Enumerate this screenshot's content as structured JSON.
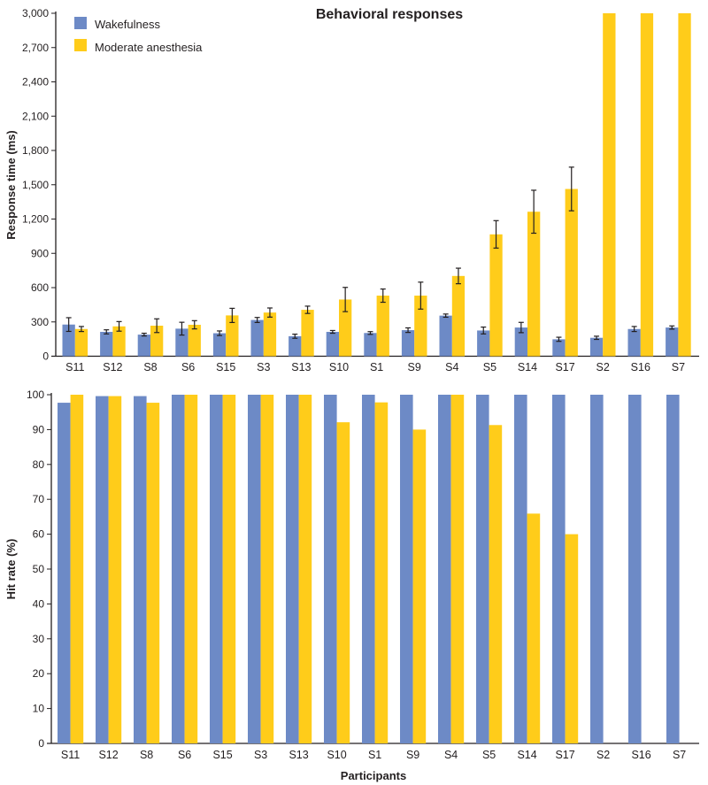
{
  "chart_data": [
    {
      "type": "bar",
      "title": "Behavioral responses",
      "xlabel": "",
      "ylabel": "Response time (ms)",
      "ylim": [
        0,
        3000
      ],
      "yticks": [
        0,
        300,
        600,
        900,
        1200,
        1500,
        1800,
        2100,
        2400,
        2700,
        3000
      ],
      "ytick_labels": [
        "0",
        "300",
        "600",
        "900",
        "1,200",
        "1,500",
        "1,800",
        "2,100",
        "2,400",
        "2,700",
        "3,000"
      ],
      "grid": false,
      "legend": {
        "placement": "top-left",
        "entries": [
          "Wakefulness",
          "Moderate anesthesia"
        ]
      },
      "categories": [
        "S11",
        "S12",
        "S8",
        "S6",
        "S15",
        "S3",
        "S13",
        "S10",
        "S1",
        "S9",
        "S4",
        "S5",
        "S14",
        "S17",
        "S2",
        "S16",
        "S7"
      ],
      "series": [
        {
          "name": "Wakefulness",
          "color": "#6d8ac6",
          "values": [
            277,
            213,
            189,
            241,
            201,
            317,
            175,
            213,
            203,
            228,
            355,
            225,
            251,
            148,
            161,
            238,
            251
          ],
          "errors": [
            60,
            18,
            12,
            56,
            20,
            22,
            18,
            12,
            12,
            20,
            14,
            30,
            45,
            18,
            14,
            22,
            14
          ]
        },
        {
          "name": "Moderate anesthesia",
          "color": "#ffcc1a",
          "values": [
            238,
            261,
            267,
            275,
            357,
            382,
            406,
            496,
            530,
            530,
            702,
            1066,
            1264,
            1463,
            3000,
            3000,
            3000
          ],
          "errors": [
            22,
            42,
            60,
            36,
            62,
            40,
            32,
            106,
            58,
            118,
            68,
            120,
            188,
            191,
            null,
            null,
            null
          ]
        }
      ]
    },
    {
      "type": "bar",
      "title": "",
      "xlabel": "Participants",
      "ylabel": "Hit rate (%)",
      "ylim": [
        0,
        100
      ],
      "yticks": [
        0,
        10,
        20,
        30,
        40,
        50,
        60,
        70,
        80,
        90,
        100
      ],
      "ytick_labels": [
        "0",
        "10",
        "20",
        "30",
        "40",
        "50",
        "60",
        "70",
        "80",
        "90",
        "100"
      ],
      "grid": false,
      "categories": [
        "S11",
        "S12",
        "S8",
        "S6",
        "S15",
        "S3",
        "S13",
        "S10",
        "S1",
        "S9",
        "S4",
        "S5",
        "S14",
        "S17",
        "S2",
        "S16",
        "S7"
      ],
      "series": [
        {
          "name": "Wakefulness",
          "color": "#6d8ac6",
          "values": [
            97.7,
            99.6,
            99.6,
            100,
            100,
            100,
            100,
            100,
            100,
            100,
            100,
            100,
            100,
            100,
            100,
            100,
            100
          ]
        },
        {
          "name": "Moderate anesthesia",
          "color": "#ffcc1a",
          "values": [
            100,
            99.6,
            97.7,
            100,
            100,
            100,
            100,
            92.1,
            97.8,
            90.0,
            100,
            91.3,
            65.9,
            60.0,
            0,
            0,
            0
          ]
        }
      ]
    }
  ]
}
